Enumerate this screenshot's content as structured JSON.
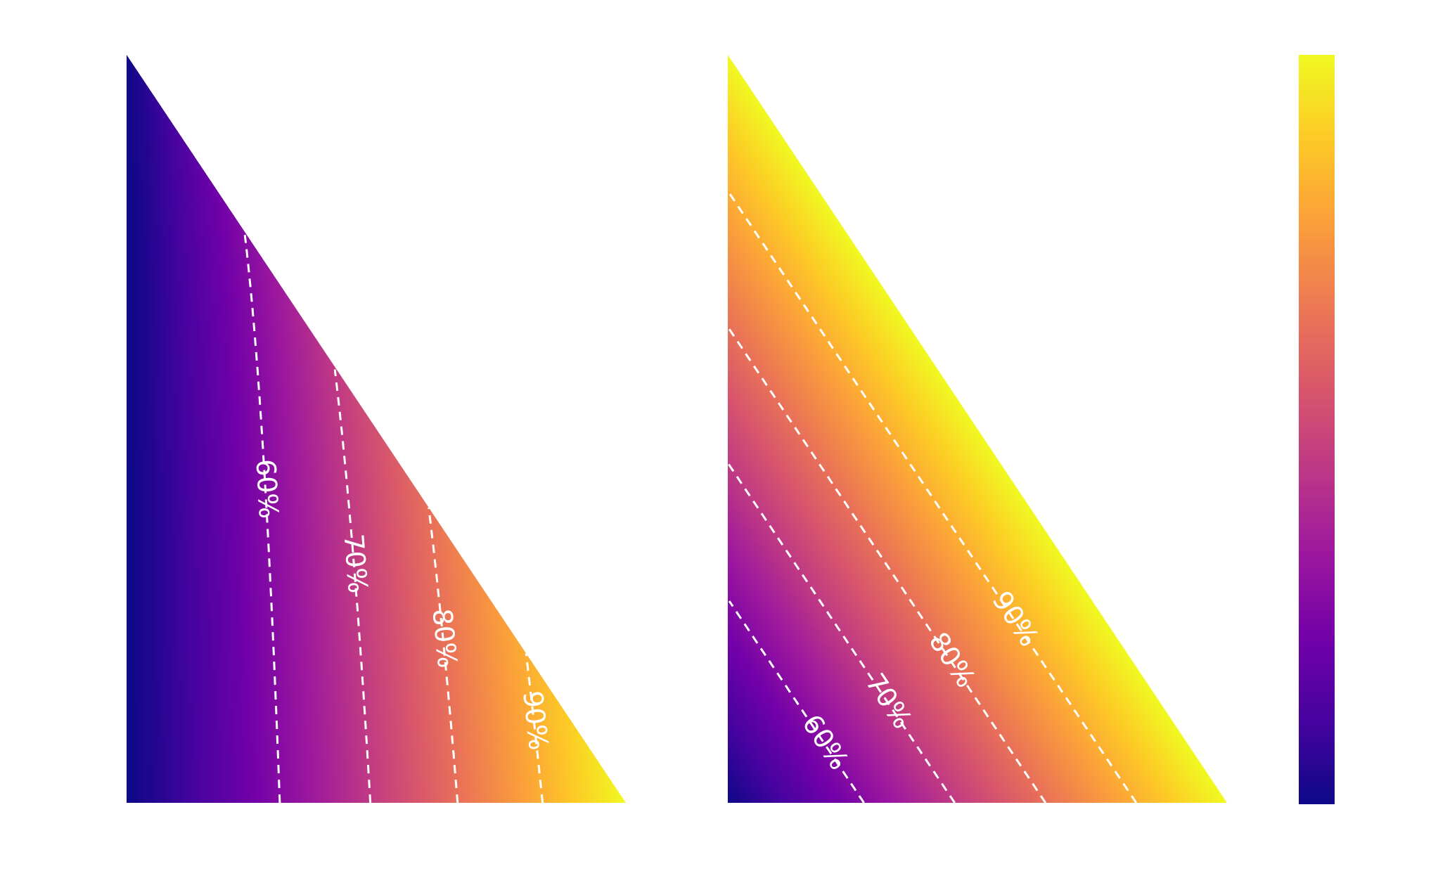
{
  "chart_data": [
    {
      "type": "heatmap",
      "panel": "left",
      "description_of_field": "value increases from the vertical edge toward the bottom-right vertex; contours curve and converge at the bottom-left corner",
      "colormap": "plasma",
      "contours": [
        {
          "level": 0.6,
          "label": "60%"
        },
        {
          "level": 0.7,
          "label": "70%"
        },
        {
          "level": 0.8,
          "label": "80%"
        },
        {
          "level": 0.9,
          "label": "90%"
        }
      ],
      "axes_visible": false,
      "grid": false
    },
    {
      "type": "heatmap",
      "panel": "right",
      "colormap": "plasma",
      "contours": [
        {
          "level": 0.6,
          "label": "60%"
        },
        {
          "level": 0.7,
          "label": "70%"
        },
        {
          "level": 0.8,
          "label": "80%"
        },
        {
          "level": 0.9,
          "label": "90%"
        }
      ],
      "axes_visible": false,
      "grid": false
    }
  ],
  "colorbar": {
    "colormap": "plasma",
    "ticks_visible": false
  },
  "colors": {
    "plasma": [
      "#0d0887",
      "#46039f",
      "#7201a8",
      "#9c179e",
      "#bd3786",
      "#d8576b",
      "#ed7953",
      "#fb9f3a",
      "#fdca26",
      "#f0f921"
    ],
    "contour_line": "#ffffff",
    "background": "#ffffff"
  }
}
